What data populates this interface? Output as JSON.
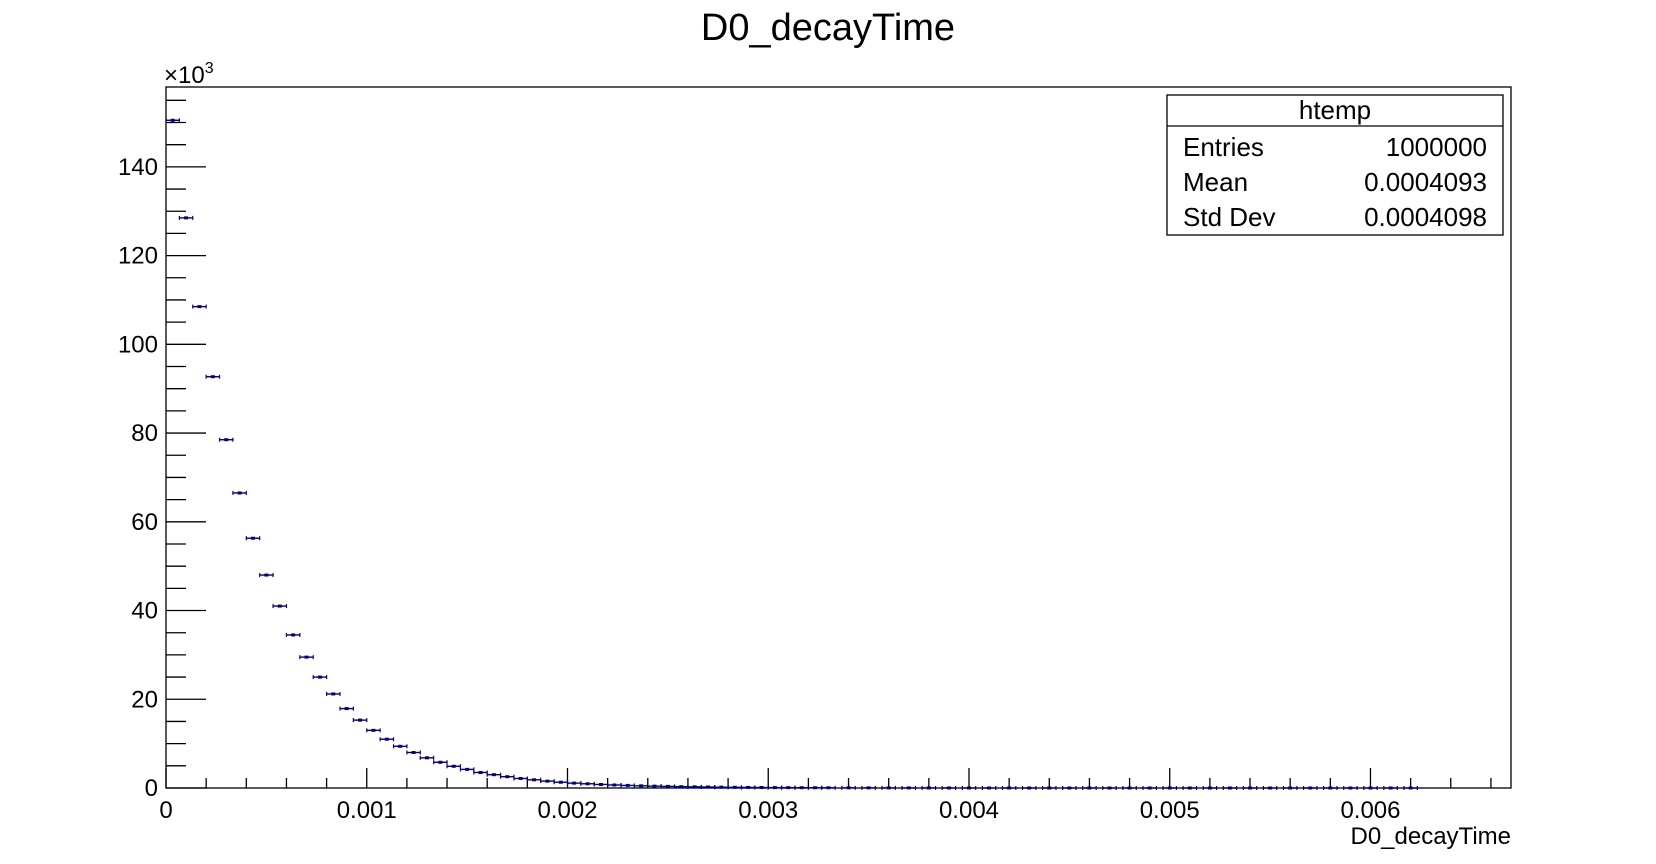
{
  "chart_data": {
    "type": "histogram",
    "title": "D0_decayTime",
    "xlabel": "D0_decayTime",
    "ylabel": "",
    "xlim": [
      0,
      0.0067
    ],
    "ylim": [
      0,
      158
    ],
    "y_multiplier": {
      "base": "×10",
      "exponent": "3"
    },
    "x_ticks": [
      "0",
      "0.001",
      "0.002",
      "0.003",
      "0.004",
      "0.005",
      "0.006"
    ],
    "x_tick_values": [
      0,
      0.001,
      0.002,
      0.003,
      0.004,
      0.005,
      0.006
    ],
    "y_ticks": [
      "0",
      "20",
      "40",
      "60",
      "80",
      "100",
      "120",
      "140"
    ],
    "y_tick_values": [
      0,
      20,
      40,
      60,
      80,
      100,
      120,
      140
    ],
    "bin_width": 6.67e-05,
    "bin_centers": [
      3.33e-05,
      0.0001,
      0.0001667,
      0.0002333,
      0.0003,
      0.0003667,
      0.0004333,
      0.0005,
      0.0005667,
      0.0006333,
      0.0007,
      0.0007667,
      0.0008333,
      0.0009,
      0.0009667,
      0.0010333,
      0.0011,
      0.0011667,
      0.0012333,
      0.0013,
      0.0013667,
      0.0014333,
      0.0015,
      0.0015667,
      0.0016333,
      0.0017,
      0.0017667,
      0.0018333,
      0.0019,
      0.0019667,
      0.0020333,
      0.0021,
      0.0021667,
      0.0022333,
      0.0023,
      0.0023667,
      0.0024333,
      0.0025,
      0.0025667,
      0.0026333,
      0.0027,
      0.0027667,
      0.0028333,
      0.0029,
      0.0029667,
      0.0030333,
      0.0031,
      0.0031667,
      0.0032333,
      0.0033,
      0.0034,
      0.0035,
      0.0036,
      0.0037,
      0.0038,
      0.0039,
      0.004,
      0.0041,
      0.0042,
      0.0043,
      0.0044,
      0.0045,
      0.0046,
      0.0047,
      0.0048,
      0.0049,
      0.005,
      0.0051,
      0.0052,
      0.0053,
      0.0054,
      0.0055,
      0.0056,
      0.0057,
      0.0058,
      0.0059,
      0.006,
      0.0061,
      0.0062
    ],
    "values": [
      150.5,
      128.5,
      108.5,
      92.7,
      78.5,
      66.5,
      56.3,
      48.0,
      41.0,
      34.5,
      29.5,
      25.0,
      21.2,
      17.9,
      15.3,
      13.0,
      11.0,
      9.4,
      8.0,
      6.8,
      5.8,
      4.9,
      4.2,
      3.5,
      3.0,
      2.55,
      2.15,
      1.85,
      1.55,
      1.3,
      1.1,
      0.95,
      0.8,
      0.68,
      0.58,
      0.49,
      0.42,
      0.36,
      0.3,
      0.26,
      0.22,
      0.18,
      0.15,
      0.13,
      0.11,
      0.09,
      0.08,
      0.07,
      0.06,
      0.05,
      0.04,
      0.03,
      0.025,
      0.02,
      0.015,
      0.012,
      0.01,
      0.008,
      0.006,
      0.005,
      0.004,
      0.003,
      0.003,
      0.002,
      0.002,
      0.001,
      0.001,
      0.001,
      0.001,
      0.0,
      0.0,
      0.0,
      0.0,
      0.0,
      0.0,
      0.0,
      0.0,
      0.0,
      0.0
    ],
    "marker_color": "#000080",
    "grid": false,
    "legend_position": "top-right",
    "stats_box": {
      "title": "htemp",
      "rows": [
        {
          "label": "Entries",
          "value": "1000000"
        },
        {
          "label": "Mean",
          "value": "0.0004093"
        },
        {
          "label": "Std Dev",
          "value": "0.0004098"
        }
      ]
    }
  }
}
